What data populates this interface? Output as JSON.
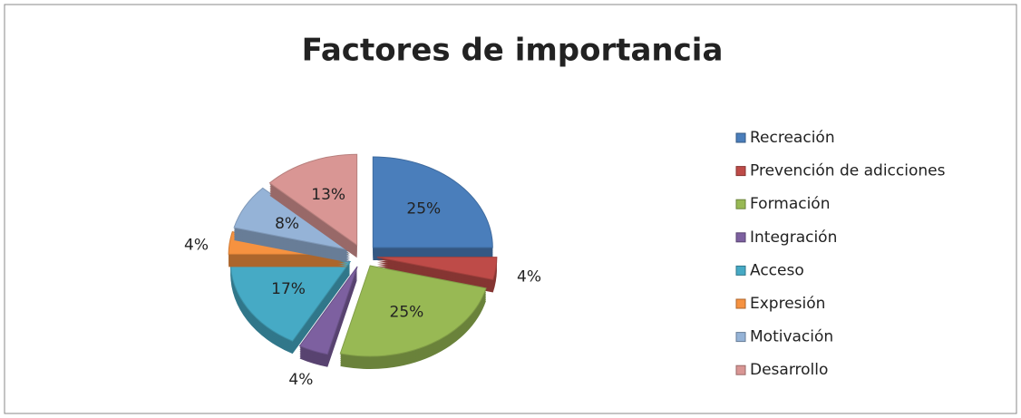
{
  "chart_data": {
    "type": "pie",
    "title": "Factores de importancia",
    "categories": [
      "Recreación",
      "Prevención de adicciones",
      "Formación",
      "Integración",
      "Acceso",
      "Expresión",
      "Motivación",
      "Desarrollo"
    ],
    "values": [
      25,
      4,
      25,
      4,
      17,
      4,
      8,
      13
    ],
    "value_labels": [
      "25%",
      "4%",
      "25%",
      "4%",
      "17%",
      "4%",
      "8%",
      "13%"
    ],
    "colors": [
      "#4a7ebb",
      "#be4b48",
      "#98b954",
      "#7d60a0",
      "#46aac5",
      "#f69240",
      "#95b3d7",
      "#d99694"
    ],
    "legend": "right"
  }
}
